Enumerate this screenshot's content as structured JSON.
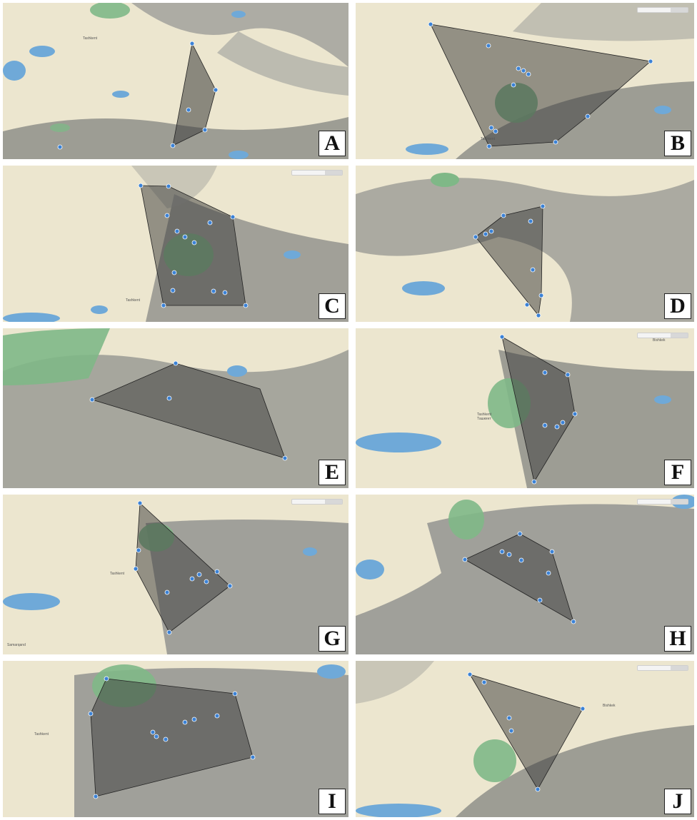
{
  "figure": {
    "panels": [
      {
        "id": "A",
        "label": "A",
        "has_control": false
      },
      {
        "id": "B",
        "label": "B",
        "has_control": true
      },
      {
        "id": "C",
        "label": "C",
        "has_control": true
      },
      {
        "id": "D",
        "label": "D",
        "has_control": false
      },
      {
        "id": "E",
        "label": "E",
        "has_control": false
      },
      {
        "id": "F",
        "label": "F",
        "has_control": true
      },
      {
        "id": "G",
        "label": "G",
        "has_control": true
      },
      {
        "id": "H",
        "label": "H",
        "has_control": true
      },
      {
        "id": "I",
        "label": "I",
        "has_control": false
      },
      {
        "id": "J",
        "label": "J",
        "has_control": true
      }
    ],
    "colors": {
      "plain": "#ece6cf",
      "mountain": "#9a9a94",
      "forest": "#7fb887",
      "water": "#6fa9d8",
      "hull_fill": "#3a3a3a",
      "point": "#3b82d6"
    },
    "place_names": [
      "Tashkent",
      "Ташкент",
      "Bishkek",
      "Samarqand"
    ]
  }
}
